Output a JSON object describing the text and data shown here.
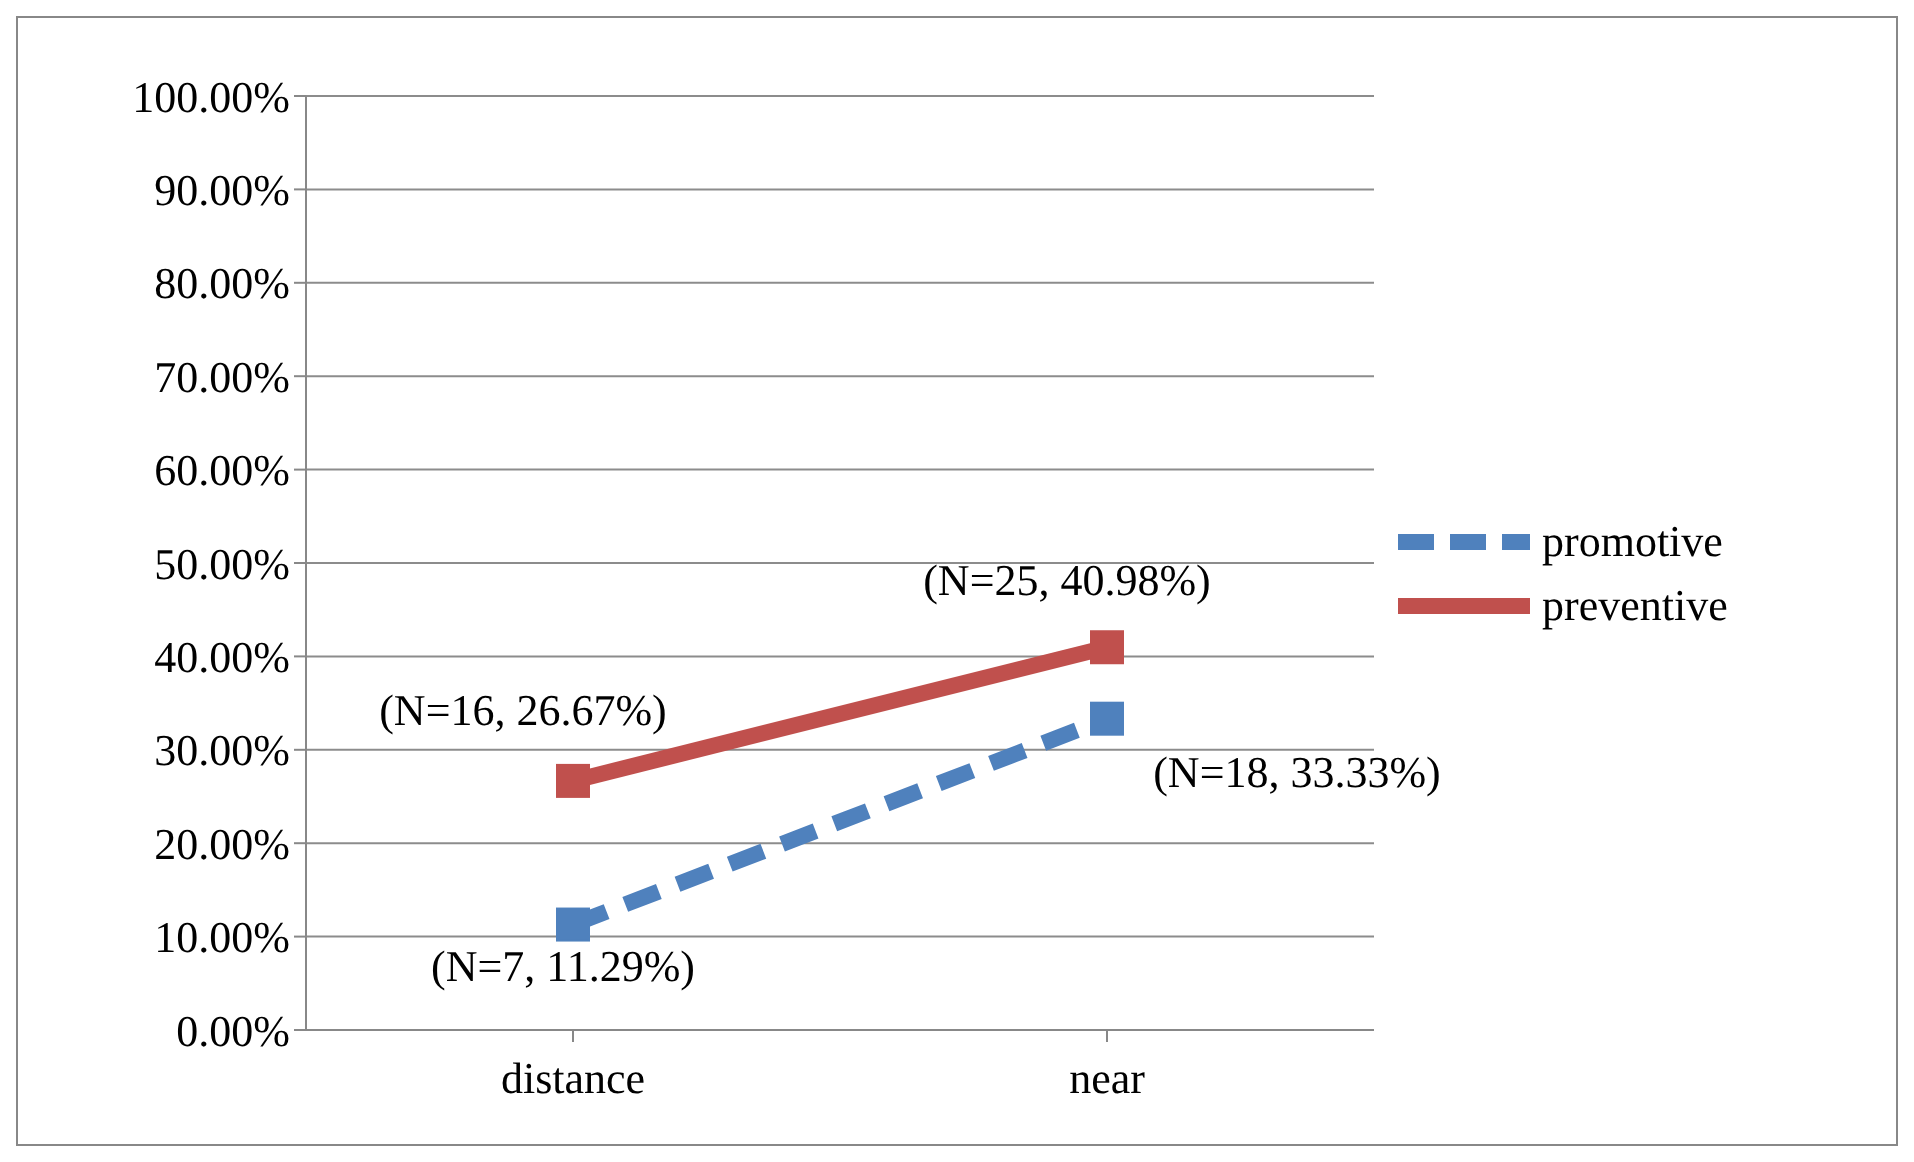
{
  "chart_data": {
    "type": "line",
    "categories": [
      "distance",
      "near"
    ],
    "series": [
      {
        "name": "promotive",
        "color": "#4f81bd",
        "values": [
          11.29,
          33.33
        ],
        "line_style": "dashed",
        "value_labels": [
          "(N=7, 11.29%)",
          "(N=18, 33.33%)"
        ]
      },
      {
        "name": "preventive",
        "color": "#c0504d",
        "values": [
          26.67,
          40.98
        ],
        "line_style": "solid",
        "value_labels": [
          "(N=16, 26.67%)",
          "(N=25, 40.98%)"
        ]
      }
    ],
    "ylim": [
      0,
      100
    ],
    "yticks": [
      {
        "value": 0,
        "label": "0.00%"
      },
      {
        "value": 10,
        "label": "10.00%"
      },
      {
        "value": 20,
        "label": "20.00%"
      },
      {
        "value": 30,
        "label": "30.00%"
      },
      {
        "value": 40,
        "label": "40.00%"
      },
      {
        "value": 50,
        "label": "50.00%"
      },
      {
        "value": 60,
        "label": "60.00%"
      },
      {
        "value": 70,
        "label": "70.00%"
      },
      {
        "value": 80,
        "label": "80.00%"
      },
      {
        "value": 90,
        "label": "90.00%"
      },
      {
        "value": 100,
        "label": "100.00%"
      }
    ],
    "grid": "y",
    "legend": "right",
    "marker": "square"
  }
}
